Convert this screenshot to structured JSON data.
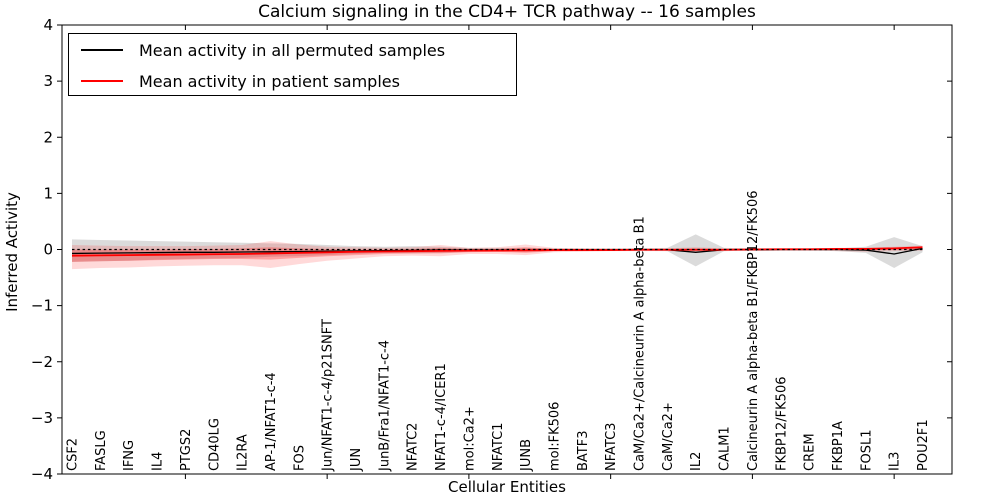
{
  "figure": {
    "title": "Calcium signaling in the CD4+ TCR pathway -- 16 samples",
    "xlabel": "Cellular Entities",
    "ylabel": "Inferred Activity",
    "legend": [
      {
        "label": "Mean activity in all permuted samples",
        "color": "#000000"
      },
      {
        "label": "Mean activity in patient samples",
        "color": "#ff0000"
      }
    ]
  },
  "chart_data": {
    "type": "line",
    "title": "Calcium signaling in the CD4+ TCR pathway -- 16 samples",
    "xlabel": "Cellular Entities",
    "ylabel": "Inferred Activity",
    "ylim": [
      -4,
      4
    ],
    "ytick_labels": [
      "4",
      "3",
      "2",
      "1",
      "0",
      "−1",
      "−2",
      "−3",
      "−4"
    ],
    "yticks": [
      4,
      3,
      2,
      1,
      0,
      -1,
      -2,
      -3,
      -4
    ],
    "grid": false,
    "legend_position": "upper left",
    "categories": [
      "CSF2",
      "FASLG",
      "IFNG",
      "IL4",
      "PTGS2",
      "CD40LG",
      "IL2RA",
      "AP-1/NFAT1-c-4",
      "FOS",
      "Jun/NFAT1-c-4/p21SNFT",
      "JUN",
      "JunB/Fra1/NFAT1-c-4",
      "NFATC2",
      "NFAT1-c-4/ICER1",
      "mol:Ca2+",
      "NFATC1",
      "JUNB",
      "mol:FK506",
      "BATF3",
      "NFATC3",
      "CaM/Ca2+/Calcineurin A alpha-beta B1",
      "CaM/Ca2+",
      "IL2",
      "CALM1",
      "Calcineurin A alpha-beta B1/FKBP12/FK506",
      "FKBP12/FK506",
      "CREM",
      "FKBP1A",
      "FOSL1",
      "IL3",
      "POU2F1"
    ],
    "xtick_mark_indices": [
      4,
      9,
      14,
      19,
      24,
      29
    ],
    "zero_line": {
      "value": 0,
      "style": "dotted",
      "color": "#000000"
    },
    "series": [
      {
        "name": "Mean activity in all permuted samples",
        "color": "#000000",
        "width": 1.3,
        "values": [
          -0.07,
          -0.065,
          -0.06,
          -0.055,
          -0.05,
          -0.05,
          -0.045,
          -0.04,
          -0.035,
          -0.03,
          -0.025,
          -0.02,
          -0.015,
          -0.01,
          -0.01,
          -0.01,
          -0.01,
          -0.005,
          -0.005,
          -0.005,
          -0.005,
          -0.005,
          -0.05,
          -0.005,
          -0.005,
          0,
          0,
          0,
          -0.01,
          -0.08,
          0.02
        ]
      },
      {
        "name": "Mean activity in patient samples",
        "color": "#ff0000",
        "width": 1.8,
        "values": [
          -0.11,
          -0.105,
          -0.1,
          -0.095,
          -0.09,
          -0.085,
          -0.08,
          -0.07,
          -0.06,
          -0.05,
          -0.04,
          -0.035,
          -0.03,
          -0.025,
          -0.02,
          -0.02,
          -0.015,
          -0.01,
          -0.01,
          -0.01,
          -0.005,
          -0.005,
          -0.005,
          -0.005,
          0,
          0.005,
          0.005,
          0.01,
          0.01,
          0.02,
          0.04
        ]
      }
    ],
    "bands": [
      {
        "name": "permuted-activity-range",
        "color": "#999999",
        "opacity": 0.35,
        "upper": [
          0.18,
          0.17,
          0.16,
          0.15,
          0.14,
          0.13,
          0.12,
          0.11,
          0.1,
          0.08,
          0.06,
          0.05,
          0.06,
          0.05,
          0.03,
          0.03,
          0.03,
          0.02,
          0.02,
          0.02,
          0.02,
          0.03,
          0.27,
          0.03,
          0.02,
          0.02,
          0.02,
          0.02,
          0.05,
          0.22,
          0.06
        ],
        "lower": [
          -0.22,
          -0.21,
          -0.2,
          -0.18,
          -0.17,
          -0.16,
          -0.15,
          -0.13,
          -0.12,
          -0.1,
          -0.08,
          -0.06,
          -0.07,
          -0.06,
          -0.04,
          -0.03,
          -0.04,
          -0.03,
          -0.02,
          -0.02,
          -0.02,
          -0.03,
          -0.3,
          -0.03,
          -0.02,
          -0.02,
          -0.02,
          -0.03,
          -0.06,
          -0.33,
          -0.05
        ]
      },
      {
        "name": "patient-activity-range-outer",
        "color": "#ff0000",
        "opacity": 0.15,
        "upper": [
          0.08,
          0.07,
          0.06,
          0.06,
          0.06,
          0.07,
          0.08,
          0.15,
          0.09,
          0.05,
          0.04,
          0.03,
          0.04,
          0.08,
          0.03,
          0.04,
          0.09,
          0.03,
          0.02,
          0.02,
          0.02,
          0.02,
          0.04,
          0.02,
          0.02,
          0.02,
          0.02,
          0.03,
          0.03,
          0.05,
          0.07
        ],
        "lower": [
          -0.35,
          -0.33,
          -0.32,
          -0.3,
          -0.29,
          -0.28,
          -0.28,
          -0.33,
          -0.26,
          -0.2,
          -0.16,
          -0.12,
          -0.11,
          -0.12,
          -0.08,
          -0.08,
          -0.1,
          -0.05,
          -0.04,
          -0.03,
          -0.03,
          -0.03,
          -0.04,
          -0.03,
          -0.02,
          -0.02,
          -0.02,
          -0.03,
          -0.04,
          -0.03,
          -0.02
        ]
      },
      {
        "name": "patient-activity-range-inner",
        "color": "#ff0000",
        "opacity": 0.25,
        "upper": [
          0,
          0,
          0,
          0,
          0.01,
          0.01,
          0.02,
          0.04,
          0.02,
          0.01,
          0,
          0,
          0.01,
          0.03,
          0.01,
          0.01,
          0.04,
          0.01,
          0.01,
          0,
          0.01,
          0.01,
          0.02,
          0.01,
          0.01,
          0.01,
          0.01,
          0.02,
          0.02,
          0.03,
          0.05
        ],
        "lower": [
          -0.22,
          -0.21,
          -0.2,
          -0.19,
          -0.18,
          -0.17,
          -0.17,
          -0.18,
          -0.15,
          -0.12,
          -0.1,
          -0.08,
          -0.07,
          -0.07,
          -0.05,
          -0.04,
          -0.06,
          -0.03,
          -0.02,
          -0.02,
          -0.015,
          -0.015,
          -0.02,
          -0.015,
          -0.01,
          -0.01,
          -0.01,
          -0.01,
          -0.01,
          -0.01,
          0
        ]
      }
    ]
  }
}
